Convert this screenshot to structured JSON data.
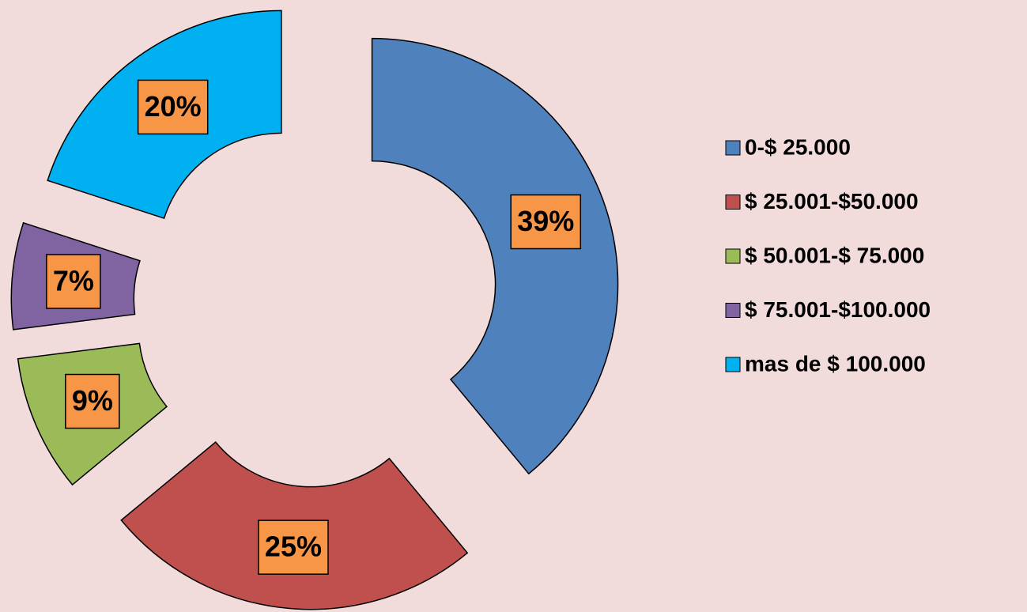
{
  "chart_data": {
    "type": "doughnut",
    "categories": [
      "0-$ 25.000",
      "$ 25.001-$50.000",
      "$ 50.001-$ 75.000",
      "$ 75.001-$100.000",
      "mas de $ 100.000"
    ],
    "values": [
      39,
      25,
      9,
      7,
      20
    ],
    "value_labels": [
      "39%",
      "25%",
      "9%",
      "7%",
      "20%"
    ],
    "colors": [
      "#4f81bd",
      "#c0504d",
      "#9bbb59",
      "#8064a2",
      "#00b0f0"
    ],
    "legend": "right"
  }
}
